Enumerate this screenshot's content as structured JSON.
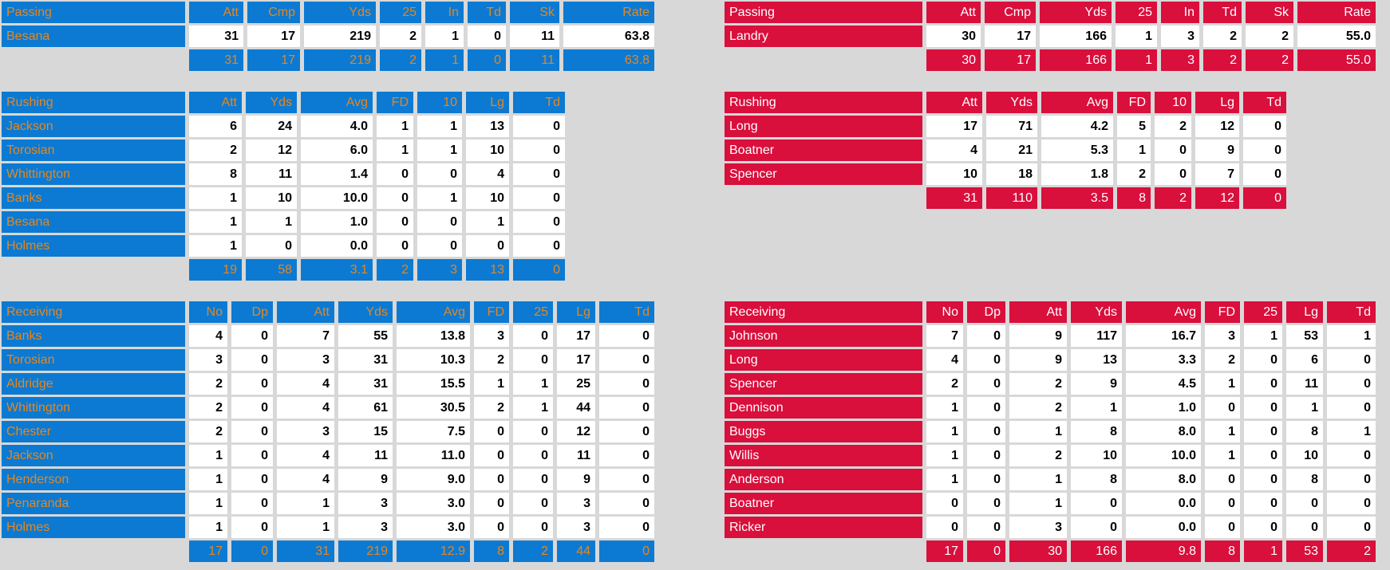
{
  "page": {
    "background": "#d8d8d8",
    "cell_background": "#ffffff",
    "number_color": "#000000"
  },
  "teams": {
    "home": {
      "accent": "#0c7ad2",
      "text": "#e8861c"
    },
    "away": {
      "accent": "#d90f3c",
      "text": "#ffffff"
    }
  },
  "tables": [
    {
      "id": "home-passing",
      "team": "home",
      "title": "Passing",
      "columns": [
        "Att",
        "Cmp",
        "Yds",
        "25",
        "In",
        "Td",
        "Sk",
        "Rate"
      ],
      "rows": [
        {
          "name": "Besana",
          "values": [
            "31",
            "17",
            "219",
            "2",
            "1",
            "0",
            "11",
            "63.8"
          ]
        }
      ],
      "totals": [
        "31",
        "17",
        "219",
        "2",
        "1",
        "0",
        "11",
        "63.8"
      ]
    },
    {
      "id": "home-rushing",
      "team": "home",
      "title": "Rushing",
      "columns": [
        "Att",
        "Yds",
        "Avg",
        "FD",
        "10",
        "Lg",
        "Td"
      ],
      "rows": [
        {
          "name": "Jackson",
          "values": [
            "6",
            "24",
            "4.0",
            "1",
            "1",
            "13",
            "0"
          ]
        },
        {
          "name": "Torosian",
          "values": [
            "2",
            "12",
            "6.0",
            "1",
            "1",
            "10",
            "0"
          ]
        },
        {
          "name": "Whittington",
          "values": [
            "8",
            "11",
            "1.4",
            "0",
            "0",
            "4",
            "0"
          ]
        },
        {
          "name": "Banks",
          "values": [
            "1",
            "10",
            "10.0",
            "0",
            "1",
            "10",
            "0"
          ]
        },
        {
          "name": "Besana",
          "values": [
            "1",
            "1",
            "1.0",
            "0",
            "0",
            "1",
            "0"
          ]
        },
        {
          "name": "Holmes",
          "values": [
            "1",
            "0",
            "0.0",
            "0",
            "0",
            "0",
            "0"
          ]
        }
      ],
      "totals": [
        "19",
        "58",
        "3.1",
        "2",
        "3",
        "13",
        "0"
      ]
    },
    {
      "id": "home-receiving",
      "team": "home",
      "title": "Receiving",
      "columns": [
        "No",
        "Dp",
        "Att",
        "Yds",
        "Avg",
        "FD",
        "25",
        "Lg",
        "Td"
      ],
      "rows": [
        {
          "name": "Banks",
          "values": [
            "4",
            "0",
            "7",
            "55",
            "13.8",
            "3",
            "0",
            "17",
            "0"
          ]
        },
        {
          "name": "Torosian",
          "values": [
            "3",
            "0",
            "3",
            "31",
            "10.3",
            "2",
            "0",
            "17",
            "0"
          ]
        },
        {
          "name": "Aldridge",
          "values": [
            "2",
            "0",
            "4",
            "31",
            "15.5",
            "1",
            "1",
            "25",
            "0"
          ]
        },
        {
          "name": "Whittington",
          "values": [
            "2",
            "0",
            "4",
            "61",
            "30.5",
            "2",
            "1",
            "44",
            "0"
          ]
        },
        {
          "name": "Chester",
          "values": [
            "2",
            "0",
            "3",
            "15",
            "7.5",
            "0",
            "0",
            "12",
            "0"
          ]
        },
        {
          "name": "Jackson",
          "values": [
            "1",
            "0",
            "4",
            "11",
            "11.0",
            "0",
            "0",
            "11",
            "0"
          ]
        },
        {
          "name": "Henderson",
          "values": [
            "1",
            "0",
            "4",
            "9",
            "9.0",
            "0",
            "0",
            "9",
            "0"
          ]
        },
        {
          "name": "Penaranda",
          "values": [
            "1",
            "0",
            "1",
            "3",
            "3.0",
            "0",
            "0",
            "3",
            "0"
          ]
        },
        {
          "name": "Holmes",
          "values": [
            "1",
            "0",
            "1",
            "3",
            "3.0",
            "0",
            "0",
            "3",
            "0"
          ]
        }
      ],
      "totals": [
        "17",
        "0",
        "31",
        "219",
        "12.9",
        "8",
        "2",
        "44",
        "0"
      ]
    },
    {
      "id": "away-passing",
      "team": "away",
      "title": "Passing",
      "columns": [
        "Att",
        "Cmp",
        "Yds",
        "25",
        "In",
        "Td",
        "Sk",
        "Rate"
      ],
      "rows": [
        {
          "name": "Landry",
          "values": [
            "30",
            "17",
            "166",
            "1",
            "3",
            "2",
            "2",
            "55.0"
          ]
        }
      ],
      "totals": [
        "30",
        "17",
        "166",
        "1",
        "3",
        "2",
        "2",
        "55.0"
      ]
    },
    {
      "id": "away-rushing",
      "team": "away",
      "title": "Rushing",
      "columns": [
        "Att",
        "Yds",
        "Avg",
        "FD",
        "10",
        "Lg",
        "Td"
      ],
      "rows": [
        {
          "name": "Long",
          "values": [
            "17",
            "71",
            "4.2",
            "5",
            "2",
            "12",
            "0"
          ]
        },
        {
          "name": "Boatner",
          "values": [
            "4",
            "21",
            "5.3",
            "1",
            "0",
            "9",
            "0"
          ]
        },
        {
          "name": "Spencer",
          "values": [
            "10",
            "18",
            "1.8",
            "2",
            "0",
            "7",
            "0"
          ]
        }
      ],
      "totals": [
        "31",
        "110",
        "3.5",
        "8",
        "2",
        "12",
        "0"
      ]
    },
    {
      "id": "away-receiving",
      "team": "away",
      "title": "Receiving",
      "columns": [
        "No",
        "Dp",
        "Att",
        "Yds",
        "Avg",
        "FD",
        "25",
        "Lg",
        "Td"
      ],
      "rows": [
        {
          "name": "Johnson",
          "values": [
            "7",
            "0",
            "9",
            "117",
            "16.7",
            "3",
            "1",
            "53",
            "1"
          ]
        },
        {
          "name": "Long",
          "values": [
            "4",
            "0",
            "9",
            "13",
            "3.3",
            "2",
            "0",
            "6",
            "0"
          ]
        },
        {
          "name": "Spencer",
          "values": [
            "2",
            "0",
            "2",
            "9",
            "4.5",
            "1",
            "0",
            "11",
            "0"
          ]
        },
        {
          "name": "Dennison",
          "values": [
            "1",
            "0",
            "2",
            "1",
            "1.0",
            "0",
            "0",
            "1",
            "0"
          ]
        },
        {
          "name": "Buggs",
          "values": [
            "1",
            "0",
            "1",
            "8",
            "8.0",
            "1",
            "0",
            "8",
            "1"
          ]
        },
        {
          "name": "Willis",
          "values": [
            "1",
            "0",
            "2",
            "10",
            "10.0",
            "1",
            "0",
            "10",
            "0"
          ]
        },
        {
          "name": "Anderson",
          "values": [
            "1",
            "0",
            "1",
            "8",
            "8.0",
            "0",
            "0",
            "8",
            "0"
          ]
        },
        {
          "name": "Boatner",
          "values": [
            "0",
            "0",
            "1",
            "0",
            "0.0",
            "0",
            "0",
            "0",
            "0"
          ]
        },
        {
          "name": "Ricker",
          "values": [
            "0",
            "0",
            "3",
            "0",
            "0.0",
            "0",
            "0",
            "0",
            "0"
          ]
        }
      ],
      "totals": [
        "17",
        "0",
        "30",
        "166",
        "9.8",
        "8",
        "1",
        "53",
        "2"
      ]
    }
  ]
}
